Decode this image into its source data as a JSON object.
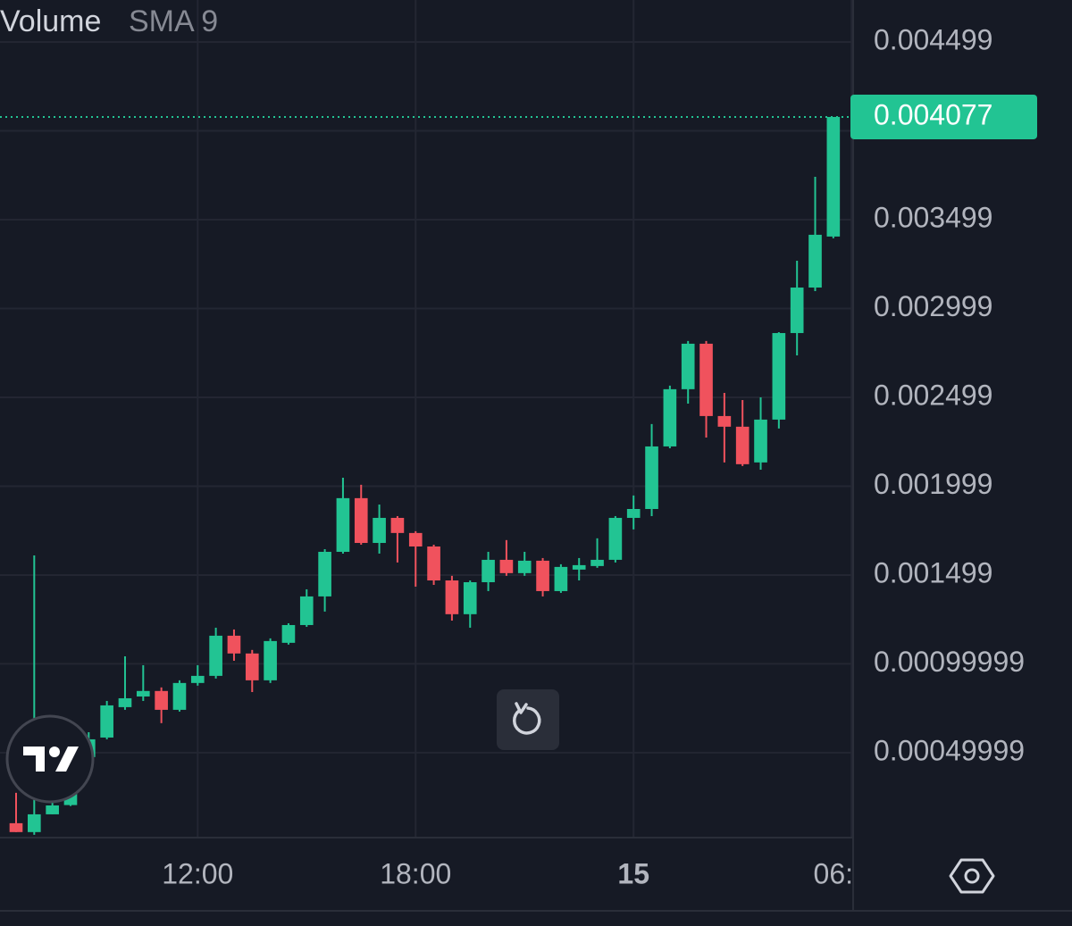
{
  "chart_data": {
    "type": "candlestick",
    "legend_title": "Volume",
    "legend_subtitle": "SMA 9",
    "up_color": "#22c493",
    "down_color": "#f0525d",
    "open": [
      0.000103,
      5.3e-05,
      0.000153,
      0.000205,
      0.000475,
      0.000585,
      0.000756,
      0.000816,
      0.000847,
      0.000741,
      0.000892,
      0.000932,
      0.001158,
      0.001058,
      0.000907,
      0.001118,
      0.001218,
      0.001379,
      0.00163,
      0.001932,
      0.00168,
      0.001821,
      0.001736,
      0.00166,
      0.001469,
      0.001279,
      0.001459,
      0.001585,
      0.00151,
      0.00158,
      0.001409,
      0.00153,
      0.00155,
      0.001585,
      0.001821,
      0.001871,
      0.002223,
      0.002545,
      0.002801,
      0.002394,
      0.002334,
      0.002133,
      0.002374,
      0.002861,
      0.003117,
      0.003404
    ],
    "high": [
      0.000274,
      0.00161,
      0.000239,
      0.00054,
      0.000615,
      0.000791,
      0.001042,
      0.000992,
      0.000867,
      0.000907,
      0.000992,
      0.001203,
      0.001193,
      0.001078,
      0.001143,
      0.001228,
      0.001419,
      0.001645,
      0.002047,
      0.002007,
      0.001896,
      0.001831,
      0.001746,
      0.00167,
      0.001495,
      0.001469,
      0.00163,
      0.001696,
      0.00163,
      0.001595,
      0.00156,
      0.001595,
      0.001706,
      0.001831,
      0.001947,
      0.002349,
      0.002565,
      0.002816,
      0.002816,
      0.002524,
      0.002484,
      0.002499,
      0.002866,
      0.003268,
      0.00374,
      0.004077
    ],
    "low": [
      5.3e-05,
      3.8e-05,
      0.000153,
      0.0002,
      0.000465,
      0.000575,
      0.000741,
      0.000791,
      0.000666,
      0.000731,
      0.000877,
      0.000917,
      0.001017,
      0.000841,
      0.000892,
      0.001108,
      0.001208,
      0.001294,
      0.00162,
      0.00167,
      0.00162,
      0.00157,
      0.001434,
      0.001444,
      0.001243,
      0.001203,
      0.001409,
      0.001495,
      0.001495,
      0.001379,
      0.001399,
      0.001469,
      0.00154,
      0.00157,
      0.001756,
      0.001831,
      0.002213,
      0.002464,
      0.002273,
      0.002133,
      0.002113,
      0.002092,
      0.002324,
      0.002735,
      0.003097,
      0.003394
    ],
    "close": [
      5.3e-05,
      0.000153,
      0.000203,
      0.000465,
      0.000575,
      0.000766,
      0.000806,
      0.000847,
      0.000741,
      0.000892,
      0.000932,
      0.001158,
      0.001058,
      0.000907,
      0.001128,
      0.001218,
      0.001379,
      0.00163,
      0.001932,
      0.00168,
      0.001821,
      0.001736,
      0.00166,
      0.001469,
      0.001279,
      0.001459,
      0.001585,
      0.00151,
      0.00158,
      0.001409,
      0.001545,
      0.001555,
      0.001585,
      0.001821,
      0.001871,
      0.002223,
      0.002545,
      0.002801,
      0.002394,
      0.002334,
      0.002123,
      0.002374,
      0.002861,
      0.003117,
      0.003414,
      0.004077
    ],
    "last_price": 0.004077,
    "ylim": [
      2.2e-05,
      0.004735
    ],
    "yticks": [
      0.004499,
      0.003999,
      0.003499,
      0.002999,
      0.002499,
      0.001999,
      0.001499,
      0.00099999,
      0.00049999
    ],
    "xlim": [
      -0.885,
      46.09
    ],
    "xticks": [
      {
        "value": 10,
        "label": "12:00"
      },
      {
        "value": 22,
        "label": "18:00"
      },
      {
        "value": 34,
        "label": "15"
      },
      {
        "value": 46,
        "label": "06:"
      }
    ],
    "grid": true
  }
}
